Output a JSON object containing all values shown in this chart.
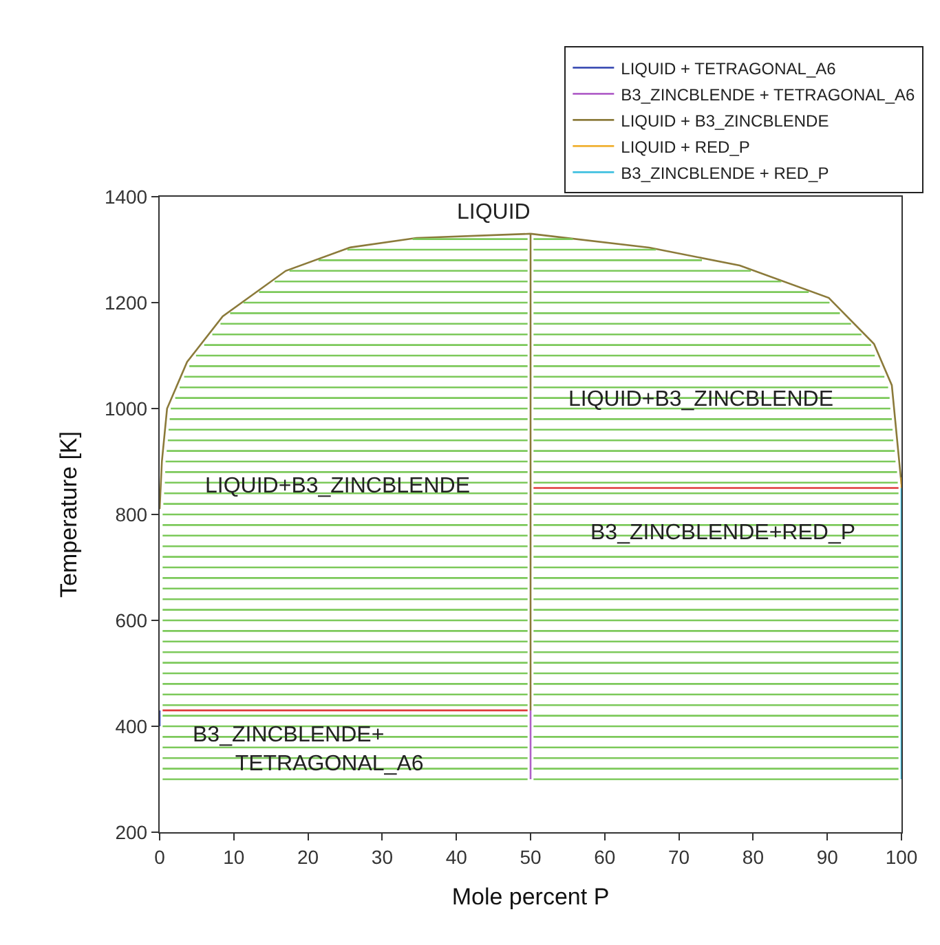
{
  "chart_data": {
    "type": "line",
    "xlabel": "Mole percent P",
    "ylabel": "Temperature [K]",
    "xlim": [
      0,
      100
    ],
    "ylim": [
      200,
      1400
    ],
    "xticks": [
      0,
      10,
      20,
      30,
      40,
      50,
      60,
      70,
      80,
      90,
      100
    ],
    "yticks": [
      200,
      400,
      600,
      800,
      1000,
      1200,
      1400
    ],
    "grid": false,
    "legend": "top right",
    "marker": "none",
    "line_style": "solid",
    "series": [
      {
        "name": "LIQUID + TETRAGONAL_A6",
        "color": "#3f51b5",
        "x": [
          0,
          0
        ],
        "values": [
          400,
          430
        ]
      },
      {
        "name": "B3_ZINCBLENDE + TETRAGONAL_A6",
        "color": "#b060c8",
        "x": [
          50,
          50
        ],
        "values": [
          300,
          430
        ]
      },
      {
        "name": "LIQUID + B3_ZINCBLENDE",
        "color": "#8b7a3a",
        "x": [
          0,
          0.3,
          1,
          3.7,
          8.5,
          17,
          25.6,
          34.6,
          50,
          null,
          50,
          50,
          null,
          50,
          66,
          78.2,
          90.2,
          96.3,
          98.7,
          99.6,
          100
        ],
        "values": [
          810,
          900,
          1000,
          1088,
          1174,
          1260,
          1304,
          1322,
          1330,
          null,
          430,
          1330,
          null,
          1330,
          1304,
          1270,
          1209,
          1122,
          1044,
          914,
          857
        ]
      },
      {
        "name": "LIQUID + RED_P",
        "color": "#f0b030",
        "x": [
          100,
          100
        ],
        "values": [
          850,
          870
        ]
      },
      {
        "name": "B3_ZINCBLENDE + RED_P",
        "color": "#40c0e0",
        "x": [
          100,
          100
        ],
        "values": [
          300,
          850
        ]
      },
      {
        "color": "#e03a3a",
        "x": [
          0.4,
          49.6
        ],
        "values": [
          430,
          430
        ]
      },
      {
        "color": "#e03a3a",
        "x": [
          50.4,
          99.6
        ],
        "values": [
          850,
          850
        ]
      },
      {
        "color": "#7cc95a",
        "x": [
          0.4,
          49.6
        ],
        "values": [
          300,
          300
        ]
      },
      {
        "color": "#7cc95a",
        "x": [
          0.4,
          49.6
        ],
        "values": [
          320,
          320
        ]
      },
      {
        "color": "#7cc95a",
        "x": [
          0.4,
          49.6
        ],
        "values": [
          340,
          340
        ]
      },
      {
        "color": "#7cc95a",
        "x": [
          0.4,
          49.6
        ],
        "values": [
          360,
          360
        ]
      },
      {
        "color": "#7cc95a",
        "x": [
          0.4,
          49.6
        ],
        "values": [
          380,
          380
        ]
      },
      {
        "color": "#7cc95a",
        "x": [
          0.4,
          49.6
        ],
        "values": [
          400,
          400
        ]
      },
      {
        "color": "#7cc95a",
        "x": [
          0.4,
          49.6
        ],
        "values": [
          420,
          420
        ]
      },
      {
        "color": "#7cc95a",
        "x": [
          0.4,
          49.6
        ],
        "values": [
          440,
          440
        ]
      },
      {
        "color": "#7cc95a",
        "x": [
          0.4,
          49.6
        ],
        "values": [
          460,
          460
        ]
      },
      {
        "color": "#7cc95a",
        "x": [
          0.4,
          49.6
        ],
        "values": [
          480,
          480
        ]
      },
      {
        "color": "#7cc95a",
        "x": [
          0.4,
          49.6
        ],
        "values": [
          500,
          500
        ]
      },
      {
        "color": "#7cc95a",
        "x": [
          0.4,
          49.6
        ],
        "values": [
          520,
          520
        ]
      },
      {
        "color": "#7cc95a",
        "x": [
          0.4,
          49.6
        ],
        "values": [
          540,
          540
        ]
      },
      {
        "color": "#7cc95a",
        "x": [
          0.4,
          49.6
        ],
        "values": [
          560,
          560
        ]
      },
      {
        "color": "#7cc95a",
        "x": [
          0.4,
          49.6
        ],
        "values": [
          580,
          580
        ]
      },
      {
        "color": "#7cc95a",
        "x": [
          0.4,
          49.6
        ],
        "values": [
          600,
          600
        ]
      },
      {
        "color": "#7cc95a",
        "x": [
          0.4,
          49.6
        ],
        "values": [
          620,
          620
        ]
      },
      {
        "color": "#7cc95a",
        "x": [
          0.4,
          49.6
        ],
        "values": [
          640,
          640
        ]
      },
      {
        "color": "#7cc95a",
        "x": [
          0.4,
          49.6
        ],
        "values": [
          660,
          660
        ]
      },
      {
        "color": "#7cc95a",
        "x": [
          0.4,
          49.6
        ],
        "values": [
          680,
          680
        ]
      },
      {
        "color": "#7cc95a",
        "x": [
          0.4,
          49.6
        ],
        "values": [
          700,
          700
        ]
      },
      {
        "color": "#7cc95a",
        "x": [
          0.4,
          49.6
        ],
        "values": [
          720,
          720
        ]
      },
      {
        "color": "#7cc95a",
        "x": [
          0.4,
          49.6
        ],
        "values": [
          740,
          740
        ]
      },
      {
        "color": "#7cc95a",
        "x": [
          0.4,
          49.6
        ],
        "values": [
          760,
          760
        ]
      },
      {
        "color": "#7cc95a",
        "x": [
          0.4,
          49.6
        ],
        "values": [
          780,
          780
        ]
      },
      {
        "color": "#7cc95a",
        "x": [
          0.4,
          49.6
        ],
        "values": [
          800,
          800
        ]
      },
      {
        "color": "#7cc95a",
        "x": [
          0.5,
          49.6
        ],
        "values": [
          820,
          820
        ]
      },
      {
        "color": "#7cc95a",
        "x": [
          0.6,
          49.6
        ],
        "values": [
          840,
          840
        ]
      },
      {
        "color": "#7cc95a",
        "x": [
          0.7,
          49.6
        ],
        "values": [
          860,
          860
        ]
      },
      {
        "color": "#7cc95a",
        "x": [
          0.75,
          49.6
        ],
        "values": [
          880,
          880
        ]
      },
      {
        "color": "#7cc95a",
        "x": [
          0.8,
          49.6
        ],
        "values": [
          900,
          900
        ]
      },
      {
        "color": "#7cc95a",
        "x": [
          0.95,
          49.6
        ],
        "values": [
          920,
          920
        ]
      },
      {
        "color": "#7cc95a",
        "x": [
          1.1,
          49.6
        ],
        "values": [
          940,
          940
        ]
      },
      {
        "color": "#7cc95a",
        "x": [
          1.2,
          49.6
        ],
        "values": [
          960,
          960
        ]
      },
      {
        "color": "#7cc95a",
        "x": [
          1.35,
          49.6
        ],
        "values": [
          980,
          980
        ]
      },
      {
        "color": "#7cc95a",
        "x": [
          1.5,
          49.6
        ],
        "values": [
          1000,
          1000
        ]
      },
      {
        "color": "#7cc95a",
        "x": [
          2.1,
          49.6
        ],
        "values": [
          1020,
          1020
        ]
      },
      {
        "color": "#7cc95a",
        "x": [
          2.7,
          49.6
        ],
        "values": [
          1040,
          1040
        ]
      },
      {
        "color": "#7cc95a",
        "x": [
          3.3,
          49.6
        ],
        "values": [
          1060,
          1060
        ]
      },
      {
        "color": "#7cc95a",
        "x": [
          4,
          49.6
        ],
        "values": [
          1080,
          1080
        ]
      },
      {
        "color": "#7cc95a",
        "x": [
          4.9,
          49.6
        ],
        "values": [
          1100,
          1100
        ]
      },
      {
        "color": "#7cc95a",
        "x": [
          6,
          49.6
        ],
        "values": [
          1120,
          1120
        ]
      },
      {
        "color": "#7cc95a",
        "x": [
          7.1,
          49.6
        ],
        "values": [
          1140,
          1140
        ]
      },
      {
        "color": "#7cc95a",
        "x": [
          8.2,
          49.6
        ],
        "values": [
          1160,
          1160
        ]
      },
      {
        "color": "#7cc95a",
        "x": [
          9.5,
          49.6
        ],
        "values": [
          1180,
          1180
        ]
      },
      {
        "color": "#7cc95a",
        "x": [
          11.3,
          49.6
        ],
        "values": [
          1200,
          1200
        ]
      },
      {
        "color": "#7cc95a",
        "x": [
          13.4,
          49.6
        ],
        "values": [
          1220,
          1220
        ]
      },
      {
        "color": "#7cc95a",
        "x": [
          15.5,
          49.6
        ],
        "values": [
          1240,
          1240
        ]
      },
      {
        "color": "#7cc95a",
        "x": [
          17.5,
          49.6
        ],
        "values": [
          1260,
          1260
        ]
      },
      {
        "color": "#7cc95a",
        "x": [
          21.4,
          49.6
        ],
        "values": [
          1280,
          1280
        ]
      },
      {
        "color": "#7cc95a",
        "x": [
          25.3,
          49.6
        ],
        "values": [
          1300,
          1300
        ]
      },
      {
        "color": "#7cc95a",
        "x": [
          34.1,
          49.6
        ],
        "values": [
          1320,
          1320
        ]
      },
      {
        "color": "#7cc95a",
        "x": [
          50.4,
          99.6
        ],
        "values": [
          300,
          300
        ]
      },
      {
        "color": "#7cc95a",
        "x": [
          50.4,
          99.6
        ],
        "values": [
          320,
          320
        ]
      },
      {
        "color": "#7cc95a",
        "x": [
          50.4,
          99.6
        ],
        "values": [
          340,
          340
        ]
      },
      {
        "color": "#7cc95a",
        "x": [
          50.4,
          99.6
        ],
        "values": [
          360,
          360
        ]
      },
      {
        "color": "#7cc95a",
        "x": [
          50.4,
          99.6
        ],
        "values": [
          380,
          380
        ]
      },
      {
        "color": "#7cc95a",
        "x": [
          50.4,
          99.6
        ],
        "values": [
          400,
          400
        ]
      },
      {
        "color": "#7cc95a",
        "x": [
          50.4,
          99.6
        ],
        "values": [
          420,
          420
        ]
      },
      {
        "color": "#7cc95a",
        "x": [
          50.4,
          99.6
        ],
        "values": [
          440,
          440
        ]
      },
      {
        "color": "#7cc95a",
        "x": [
          50.4,
          99.6
        ],
        "values": [
          460,
          460
        ]
      },
      {
        "color": "#7cc95a",
        "x": [
          50.4,
          99.6
        ],
        "values": [
          480,
          480
        ]
      },
      {
        "color": "#7cc95a",
        "x": [
          50.4,
          99.6
        ],
        "values": [
          500,
          500
        ]
      },
      {
        "color": "#7cc95a",
        "x": [
          50.4,
          99.6
        ],
        "values": [
          520,
          520
        ]
      },
      {
        "color": "#7cc95a",
        "x": [
          50.4,
          99.6
        ],
        "values": [
          540,
          540
        ]
      },
      {
        "color": "#7cc95a",
        "x": [
          50.4,
          99.6
        ],
        "values": [
          560,
          560
        ]
      },
      {
        "color": "#7cc95a",
        "x": [
          50.4,
          99.6
        ],
        "values": [
          580,
          580
        ]
      },
      {
        "color": "#7cc95a",
        "x": [
          50.4,
          99.6
        ],
        "values": [
          600,
          600
        ]
      },
      {
        "color": "#7cc95a",
        "x": [
          50.4,
          99.6
        ],
        "values": [
          620,
          620
        ]
      },
      {
        "color": "#7cc95a",
        "x": [
          50.4,
          99.6
        ],
        "values": [
          640,
          640
        ]
      },
      {
        "color": "#7cc95a",
        "x": [
          50.4,
          99.6
        ],
        "values": [
          660,
          660
        ]
      },
      {
        "color": "#7cc95a",
        "x": [
          50.4,
          99.6
        ],
        "values": [
          680,
          680
        ]
      },
      {
        "color": "#7cc95a",
        "x": [
          50.4,
          99.6
        ],
        "values": [
          700,
          700
        ]
      },
      {
        "color": "#7cc95a",
        "x": [
          50.4,
          99.6
        ],
        "values": [
          720,
          720
        ]
      },
      {
        "color": "#7cc95a",
        "x": [
          50.4,
          99.6
        ],
        "values": [
          740,
          740
        ]
      },
      {
        "color": "#7cc95a",
        "x": [
          50.4,
          99.6
        ],
        "values": [
          760,
          760
        ]
      },
      {
        "color": "#7cc95a",
        "x": [
          50.4,
          99.6
        ],
        "values": [
          780,
          780
        ]
      },
      {
        "color": "#7cc95a",
        "x": [
          50.4,
          99.6
        ],
        "values": [
          800,
          800
        ]
      },
      {
        "color": "#7cc95a",
        "x": [
          50.4,
          99.6
        ],
        "values": [
          820,
          820
        ]
      },
      {
        "color": "#7cc95a",
        "x": [
          50.4,
          99.6
        ],
        "values": [
          840,
          840
        ]
      },
      {
        "color": "#7cc95a",
        "x": [
          50.4,
          99.5
        ],
        "values": [
          860,
          860
        ]
      },
      {
        "color": "#7cc95a",
        "x": [
          50.4,
          99.4
        ],
        "values": [
          880,
          880
        ]
      },
      {
        "color": "#7cc95a",
        "x": [
          50.4,
          99.2
        ],
        "values": [
          900,
          900
        ]
      },
      {
        "color": "#7cc95a",
        "x": [
          50.4,
          99.1
        ],
        "values": [
          920,
          920
        ]
      },
      {
        "color": "#7cc95a",
        "x": [
          50.4,
          98.9
        ],
        "values": [
          940,
          940
        ]
      },
      {
        "color": "#7cc95a",
        "x": [
          50.4,
          98.8
        ],
        "values": [
          960,
          960
        ]
      },
      {
        "color": "#7cc95a",
        "x": [
          50.4,
          98.7
        ],
        "values": [
          980,
          980
        ]
      },
      {
        "color": "#7cc95a",
        "x": [
          50.4,
          98.5
        ],
        "values": [
          1000,
          1000
        ]
      },
      {
        "color": "#7cc95a",
        "x": [
          50.4,
          98.4
        ],
        "values": [
          1020,
          1020
        ]
      },
      {
        "color": "#7cc95a",
        "x": [
          50.4,
          98.2
        ],
        "values": [
          1040,
          1040
        ]
      },
      {
        "color": "#7cc95a",
        "x": [
          50.4,
          97.7
        ],
        "values": [
          1060,
          1060
        ]
      },
      {
        "color": "#7cc95a",
        "x": [
          50.4,
          97.1
        ],
        "values": [
          1080,
          1080
        ]
      },
      {
        "color": "#7cc95a",
        "x": [
          50.4,
          96.4
        ],
        "values": [
          1100,
          1100
        ]
      },
      {
        "color": "#7cc95a",
        "x": [
          50.4,
          95.9
        ],
        "values": [
          1120,
          1120
        ]
      },
      {
        "color": "#7cc95a",
        "x": [
          50.4,
          94.6
        ],
        "values": [
          1140,
          1140
        ]
      },
      {
        "color": "#7cc95a",
        "x": [
          50.4,
          93.2
        ],
        "values": [
          1160,
          1160
        ]
      },
      {
        "color": "#7cc95a",
        "x": [
          50.4,
          91.7
        ],
        "values": [
          1180,
          1180
        ]
      },
      {
        "color": "#7cc95a",
        "x": [
          50.4,
          90.3
        ],
        "values": [
          1200,
          1200
        ]
      },
      {
        "color": "#7cc95a",
        "x": [
          50.4,
          87.5
        ],
        "values": [
          1220,
          1220
        ]
      },
      {
        "color": "#7cc95a",
        "x": [
          50.4,
          83.8
        ],
        "values": [
          1240,
          1240
        ]
      },
      {
        "color": "#7cc95a",
        "x": [
          50.4,
          79.7
        ],
        "values": [
          1260,
          1260
        ]
      },
      {
        "color": "#7cc95a",
        "x": [
          50.4,
          73.1
        ],
        "values": [
          1280,
          1280
        ]
      },
      {
        "color": "#7cc95a",
        "x": [
          50.4,
          66.9
        ],
        "values": [
          1300,
          1300
        ]
      },
      {
        "color": "#7cc95a",
        "x": [
          50.4,
          55.7
        ],
        "values": [
          1320,
          1320
        ]
      }
    ],
    "annotations": [
      "LIQUID",
      "LIQUID+B3_ZINCBLENDE",
      "LIQUID+B3_ZINCBLENDE",
      "B3_ZINCBLENDE+RED_P",
      "B3_ZINCBLENDE+\n       TETRAGONAL_A6"
    ]
  }
}
